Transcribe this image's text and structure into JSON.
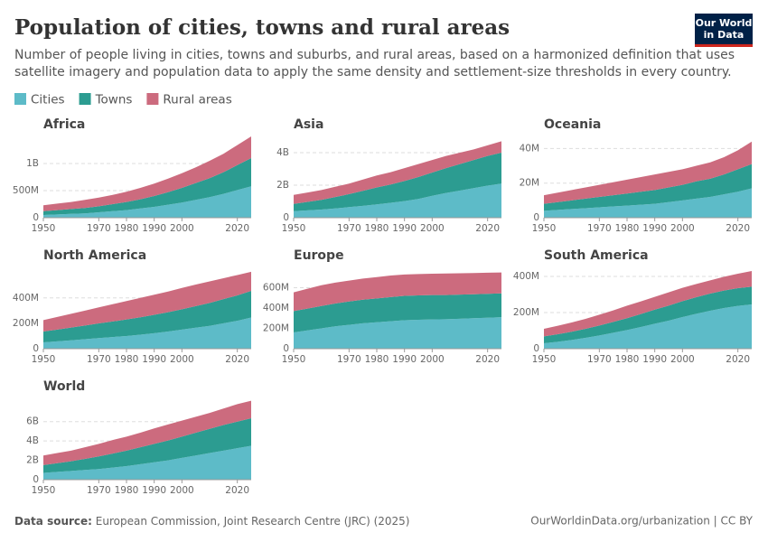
{
  "title": "Population of cities, towns and rural areas",
  "subtitle": [
    "Number of people living in cities, towns and suburbs, and rural areas, based on a harmonized definition that uses",
    "satellite imagery and population data to apply the same density and settlement-size thresholds in every country."
  ],
  "logo": [
    "Our World",
    "in Data"
  ],
  "legend": [
    {
      "name": "Cities",
      "color": "#5dbbc8"
    },
    {
      "name": "Towns",
      "color": "#2c9c91"
    },
    {
      "name": "Rural areas",
      "color": "#cc6b7e"
    }
  ],
  "chart_data": [
    {
      "type": "area",
      "title": "Africa",
      "x": [
        1950,
        1955,
        1960,
        1965,
        1970,
        1975,
        1980,
        1985,
        1990,
        1995,
        2000,
        2005,
        2010,
        2015,
        2020,
        2025
      ],
      "xlim": [
        1950,
        2025
      ],
      "xticks": [
        1950,
        1970,
        1980,
        1990,
        2000,
        2020
      ],
      "ylim": [
        0,
        1500000000
      ],
      "yticks": [
        0,
        {
          "value": 500000000,
          "label": "500M"
        },
        {
          "value": 1000000000,
          "label": "1B"
        }
      ],
      "grid": true,
      "series": [
        {
          "values": [
            50000000,
            60000000,
            70000000,
            80000000,
            100000000,
            120000000,
            140000000,
            170000000,
            200000000,
            240000000,
            280000000,
            330000000,
            380000000,
            440000000,
            510000000,
            580000000
          ]
        },
        {
          "values": [
            70000000,
            80000000,
            90000000,
            100000000,
            110000000,
            130000000,
            150000000,
            170000000,
            200000000,
            230000000,
            270000000,
            310000000,
            350000000,
            400000000,
            460000000,
            520000000
          ]
        },
        {
          "values": [
            110000000,
            120000000,
            130000000,
            150000000,
            160000000,
            170000000,
            190000000,
            210000000,
            230000000,
            250000000,
            270000000,
            290000000,
            320000000,
            340000000,
            370000000,
            400000000
          ]
        }
      ]
    },
    {
      "type": "area",
      "title": "Asia",
      "x": [
        1950,
        1955,
        1960,
        1965,
        1970,
        1975,
        1980,
        1985,
        1990,
        1995,
        2000,
        2005,
        2010,
        2015,
        2020,
        2025
      ],
      "xlim": [
        1950,
        2025
      ],
      "xticks": [
        1950,
        1970,
        1980,
        1990,
        2000,
        2020
      ],
      "ylim": [
        0,
        5000000000
      ],
      "yticks": [
        0,
        {
          "value": 2000000000,
          "label": "2B"
        },
        {
          "value": 4000000000,
          "label": "4B"
        }
      ],
      "grid": true,
      "series": [
        {
          "values": [
            400000000,
            450000000,
            500000000,
            570000000,
            650000000,
            730000000,
            820000000,
            920000000,
            1020000000,
            1150000000,
            1350000000,
            1520000000,
            1670000000,
            1820000000,
            1970000000,
            2100000000
          ]
        },
        {
          "values": [
            450000000,
            520000000,
            600000000,
            700000000,
            800000000,
            920000000,
            1040000000,
            1120000000,
            1240000000,
            1350000000,
            1430000000,
            1530000000,
            1630000000,
            1730000000,
            1830000000,
            1900000000
          ]
        },
        {
          "values": [
            550000000,
            580000000,
            600000000,
            630000000,
            650000000,
            700000000,
            740000000,
            760000000,
            790000000,
            800000000,
            770000000,
            750000000,
            700000000,
            650000000,
            650000000,
            700000000
          ]
        }
      ]
    },
    {
      "type": "area",
      "title": "Oceania",
      "x": [
        1950,
        1955,
        1960,
        1965,
        1970,
        1975,
        1980,
        1985,
        1990,
        1995,
        2000,
        2005,
        2010,
        2015,
        2020,
        2025
      ],
      "xlim": [
        1950,
        2025
      ],
      "xticks": [
        1950,
        1970,
        1980,
        1990,
        2000,
        2020
      ],
      "ylim": [
        0,
        47000000
      ],
      "yticks": [
        0,
        {
          "value": 20000000,
          "label": "20M"
        },
        {
          "value": 40000000,
          "label": "40M"
        }
      ],
      "grid": true,
      "series": [
        {
          "values": [
            4000000,
            4500000,
            5000000,
            5500000,
            6000000,
            6500000,
            7000000,
            7500000,
            8000000,
            9000000,
            10000000,
            11000000,
            12000000,
            13500000,
            15000000,
            17000000
          ]
        },
        {
          "values": [
            4000000,
            4500000,
            5000000,
            5500000,
            6000000,
            6500000,
            7000000,
            7500000,
            8000000,
            8500000,
            9000000,
            10000000,
            10500000,
            11500000,
            13000000,
            14000000
          ]
        },
        {
          "values": [
            5000000,
            5500000,
            6000000,
            6500000,
            7000000,
            7500000,
            8000000,
            8500000,
            9000000,
            9000000,
            9000000,
            9000000,
            9500000,
            10000000,
            11000000,
            13000000
          ]
        }
      ]
    },
    {
      "type": "area",
      "title": "North America",
      "x": [
        1950,
        1955,
        1960,
        1965,
        1970,
        1975,
        1980,
        1985,
        1990,
        1995,
        2000,
        2005,
        2010,
        2015,
        2020,
        2025
      ],
      "xlim": [
        1950,
        2025
      ],
      "xticks": [
        1950,
        1970,
        1980,
        1990,
        2000,
        2020
      ],
      "ylim": [
        0,
        640000000
      ],
      "yticks": [
        0,
        {
          "value": 200000000,
          "label": "200M"
        },
        {
          "value": 400000000,
          "label": "400M"
        }
      ],
      "grid": true,
      "series": [
        {
          "values": [
            50000000,
            58000000,
            66000000,
            75000000,
            84000000,
            92000000,
            100000000,
            110000000,
            122000000,
            135000000,
            150000000,
            165000000,
            180000000,
            200000000,
            220000000,
            245000000
          ]
        },
        {
          "values": [
            85000000,
            92000000,
            100000000,
            107000000,
            115000000,
            122000000,
            130000000,
            137000000,
            145000000,
            152000000,
            160000000,
            170000000,
            180000000,
            190000000,
            200000000,
            210000000
          ]
        },
        {
          "values": [
            90000000,
            100000000,
            109000000,
            118000000,
            126000000,
            136000000,
            145000000,
            153000000,
            158000000,
            163000000,
            168000000,
            170000000,
            170000000,
            165000000,
            160000000,
            150000000
          ]
        }
      ]
    },
    {
      "type": "area",
      "title": "Europe",
      "x": [
        1950,
        1955,
        1960,
        1965,
        1970,
        1975,
        1980,
        1985,
        1990,
        1995,
        2000,
        2005,
        2010,
        2015,
        2020,
        2025
      ],
      "xlim": [
        1950,
        2025
      ],
      "xticks": [
        1950,
        1970,
        1980,
        1990,
        2000,
        2020
      ],
      "ylim": [
        0,
        800000000
      ],
      "yticks": [
        0,
        {
          "value": 200000000,
          "label": "200M"
        },
        {
          "value": 400000000,
          "label": "400M"
        },
        {
          "value": 600000000,
          "label": "600M"
        }
      ],
      "grid": true,
      "series": [
        {
          "values": [
            160000000,
            180000000,
            200000000,
            220000000,
            235000000,
            250000000,
            260000000,
            270000000,
            280000000,
            285000000,
            288000000,
            290000000,
            295000000,
            300000000,
            305000000,
            310000000
          ]
        },
        {
          "values": [
            210000000,
            215000000,
            220000000,
            225000000,
            230000000,
            232000000,
            235000000,
            238000000,
            240000000,
            240000000,
            240000000,
            238000000,
            237000000,
            236000000,
            235000000,
            235000000
          ]
        },
        {
          "values": [
            185000000,
            195000000,
            205000000,
            205000000,
            205000000,
            208000000,
            210000000,
            212000000,
            210000000,
            210000000,
            210000000,
            212000000,
            210000000,
            209000000,
            208000000,
            205000000
          ]
        }
      ]
    },
    {
      "type": "area",
      "title": "South America",
      "x": [
        1950,
        1955,
        1960,
        1965,
        1970,
        1975,
        1980,
        1985,
        1990,
        1995,
        2000,
        2005,
        2010,
        2015,
        2020,
        2025
      ],
      "xlim": [
        1950,
        2025
      ],
      "xticks": [
        1950,
        1970,
        1980,
        1990,
        2000,
        2020
      ],
      "ylim": [
        0,
        450000000
      ],
      "yticks": [
        0,
        {
          "value": 200000000,
          "label": "200M"
        },
        {
          "value": 400000000,
          "label": "400M"
        }
      ],
      "grid": true,
      "series": [
        {
          "values": [
            30000000,
            38000000,
            48000000,
            60000000,
            73000000,
            88000000,
            103000000,
            120000000,
            138000000,
            155000000,
            175000000,
            193000000,
            210000000,
            225000000,
            237000000,
            245000000
          ]
        },
        {
          "values": [
            38000000,
            42000000,
            46000000,
            50000000,
            55000000,
            60000000,
            66000000,
            72000000,
            78000000,
            83000000,
            88000000,
            92000000,
            95000000,
            97000000,
            98000000,
            98000000
          ]
        },
        {
          "values": [
            42000000,
            47000000,
            51000000,
            55000000,
            60000000,
            64000000,
            69000000,
            70000000,
            71000000,
            74000000,
            74000000,
            73000000,
            73000000,
            76000000,
            80000000,
            87000000
          ]
        }
      ]
    },
    {
      "type": "area",
      "title": "World",
      "x": [
        1950,
        1955,
        1960,
        1965,
        1970,
        1975,
        1980,
        1985,
        1990,
        1995,
        2000,
        2005,
        2010,
        2015,
        2020,
        2025
      ],
      "xlim": [
        1950,
        2025
      ],
      "xticks": [
        1950,
        1970,
        1980,
        1990,
        2000,
        2020
      ],
      "ylim": [
        0,
        8400000000
      ],
      "yticks": [
        0,
        {
          "value": 2000000000,
          "label": "2B"
        },
        {
          "value": 4000000000,
          "label": "4B"
        },
        {
          "value": 6000000000,
          "label": "6B"
        }
      ],
      "grid": true,
      "series": [
        {
          "values": [
            700000000,
            800000000,
            900000000,
            1000000000,
            1100000000,
            1250000000,
            1400000000,
            1600000000,
            1800000000,
            2000000000,
            2250000000,
            2500000000,
            2750000000,
            3000000000,
            3250000000,
            3500000000
          ]
        },
        {
          "values": [
            800000000,
            900000000,
            1000000000,
            1150000000,
            1300000000,
            1450000000,
            1600000000,
            1750000000,
            1900000000,
            2050000000,
            2200000000,
            2350000000,
            2500000000,
            2650000000,
            2750000000,
            2850000000
          ]
        },
        {
          "values": [
            1000000000,
            1050000000,
            1100000000,
            1200000000,
            1300000000,
            1400000000,
            1450000000,
            1500000000,
            1600000000,
            1650000000,
            1650000000,
            1650000000,
            1650000000,
            1700000000,
            1800000000,
            1800000000
          ]
        }
      ]
    }
  ],
  "source_label": "Data source:",
  "source": "European Commission, Joint Research Centre (JRC) (2025)",
  "footer_right": "OurWorldinData.org/urbanization | CC BY"
}
